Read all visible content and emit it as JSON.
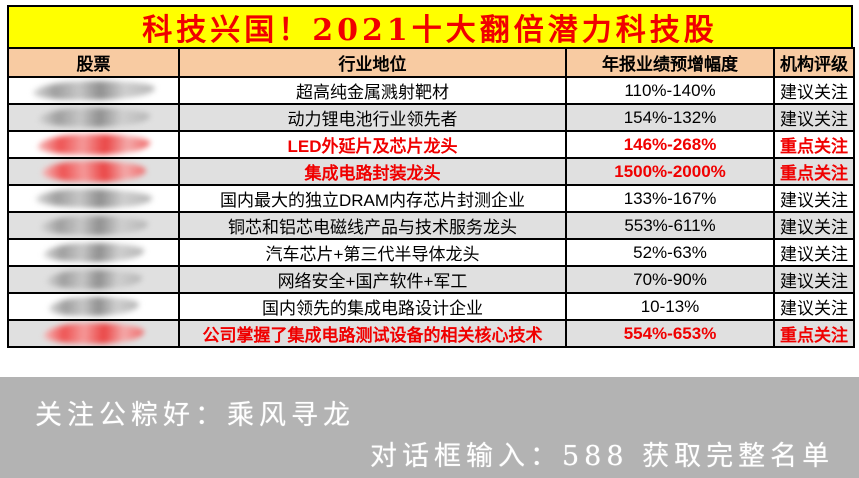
{
  "page": {
    "title": "科技兴国！2021十大翻倍潜力科技股"
  },
  "table": {
    "headers": [
      "股票",
      "行业地位",
      "年报业绩预增幅度",
      "机构评级"
    ],
    "rows": [
      {
        "stock_redacted": true,
        "redact_color": "gray",
        "industry": "超高纯金属溅射靶材",
        "growth": "110%-140%",
        "rating": "建议关注",
        "highlight": false
      },
      {
        "stock_redacted": true,
        "redact_color": "gray",
        "industry": "动力锂电池行业领先者",
        "growth": "154%-132%",
        "rating": "建议关注",
        "highlight": false
      },
      {
        "stock_redacted": true,
        "redact_color": "red",
        "industry": "LED外延片及芯片龙头",
        "growth": "146%-268%",
        "rating": "重点关注",
        "highlight": true
      },
      {
        "stock_redacted": true,
        "redact_color": "red",
        "industry": "集成电路封装龙头",
        "growth": "1500%-2000%",
        "rating": "重点关注",
        "highlight": true
      },
      {
        "stock_redacted": true,
        "redact_color": "gray",
        "industry": "国内最大的独立DRAM内存芯片封测企业",
        "growth": "133%-167%",
        "rating": "建议关注",
        "highlight": false
      },
      {
        "stock_redacted": true,
        "redact_color": "gray",
        "industry": "铜芯和铝芯电磁线产品与技术服务龙头",
        "growth": "553%-611%",
        "rating": "建议关注",
        "highlight": false
      },
      {
        "stock_redacted": true,
        "redact_color": "gray",
        "industry": "汽车芯片+第三代半导体龙头",
        "growth": "52%-63%",
        "rating": "建议关注",
        "highlight": false
      },
      {
        "stock_redacted": true,
        "redact_color": "gray",
        "industry": "网络安全+国产软件+军工",
        "growth": "70%-90%",
        "rating": "建议关注",
        "highlight": false
      },
      {
        "stock_redacted": true,
        "redact_color": "gray",
        "industry": "国内领先的集成电路设计企业",
        "growth": "10-13%",
        "rating": "建议关注",
        "highlight": false
      },
      {
        "stock_redacted": true,
        "redact_color": "red",
        "industry": "公司掌握了集成电路测试设备的相关核心技术",
        "growth": "554%-653%",
        "rating": "重点关注",
        "highlight": true
      }
    ]
  },
  "footer": {
    "line1": "关注公粽好：乘风寻龙",
    "line2": "对话框输入：588 获取完整名单"
  },
  "colors": {
    "title_bg": "#FFFF00",
    "title_text": "#F00000",
    "header_bg": "#F8CBA2",
    "row_alt_bg": "#E0E0E0",
    "highlight_text": "#F00000",
    "footer_bg": "#B3B3B3",
    "footer_text": "#FFFFFF",
    "border": "#000000"
  }
}
